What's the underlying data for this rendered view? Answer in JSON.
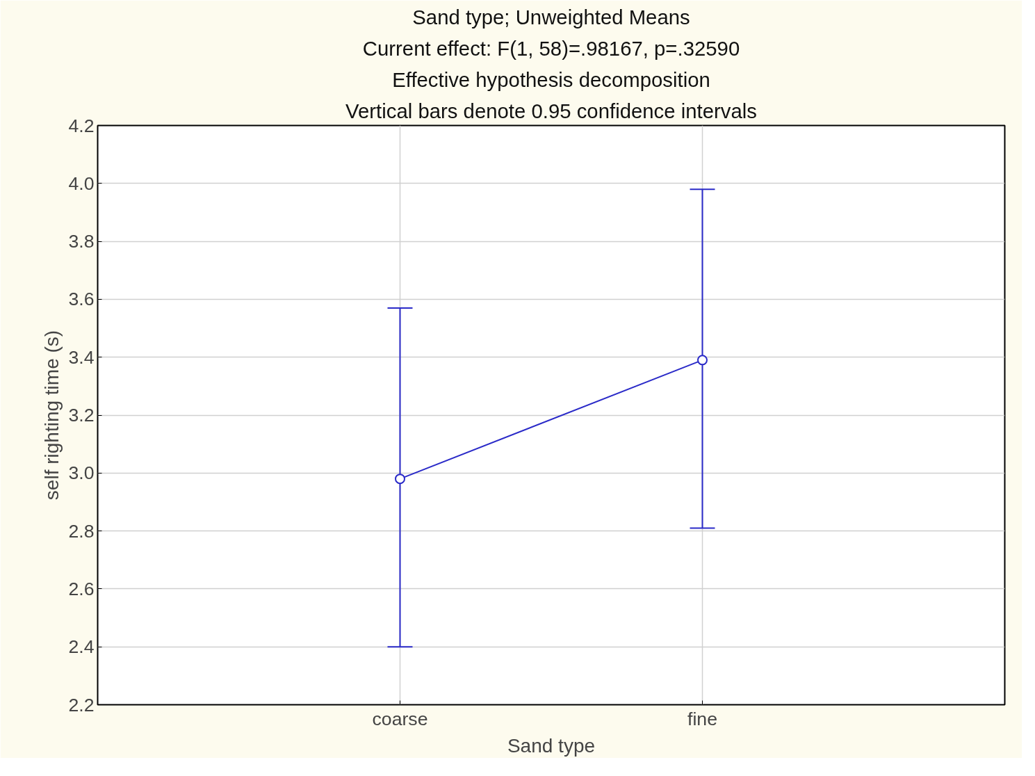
{
  "chart_data": {
    "type": "line",
    "title": "Sand type; Unweighted Means",
    "annotations": [
      "Current effect: F(1, 58)=.98167, p=.32590",
      "Effective hypothesis decomposition",
      "Vertical bars denote 0.95 confidence intervals"
    ],
    "xlabel": "Sand type",
    "ylabel": "self righting time (s)",
    "categories": [
      "coarse",
      "fine"
    ],
    "series": [
      {
        "color": "#2a2ac8",
        "values": [
          2.98,
          3.39
        ],
        "errors": [
          [
            2.4,
            3.57
          ],
          [
            2.81,
            3.98
          ]
        ]
      }
    ],
    "ylim": [
      2.2,
      4.2
    ],
    "yticks": [
      2.2,
      2.4,
      2.6,
      2.8,
      {
        "value": 3,
        "label": "3.0"
      },
      3.2,
      3.4,
      3.6,
      3.8,
      {
        "value": 4,
        "label": "4.0"
      },
      4.2
    ],
    "grid": true,
    "marker": "circle",
    "line_style": "solid"
  }
}
